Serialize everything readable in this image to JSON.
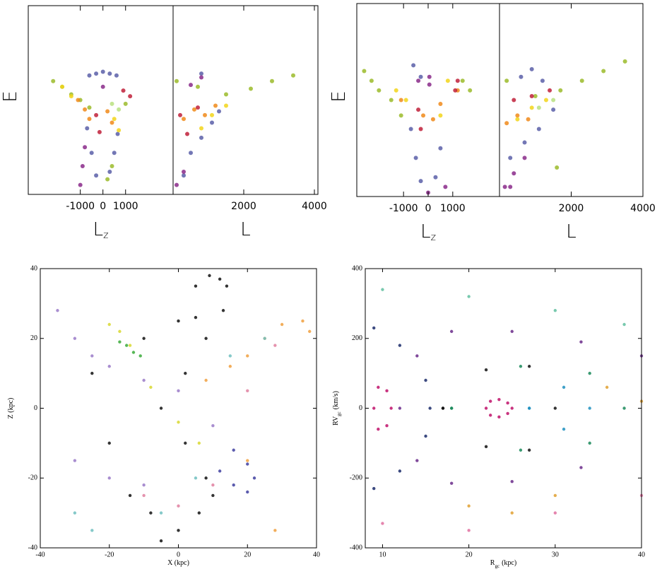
{
  "chart_data": [
    {
      "type": "scatter",
      "xlabel": "L",
      "xlabel_sub": "z",
      "ylabel": "E",
      "xlim": [
        -3300,
        3100
      ],
      "xticks": [
        -1000,
        0,
        1000
      ],
      "ylim": [
        0,
        1
      ],
      "series": [
        {
          "color": "#5b5fa8",
          "x": [
            -600,
            -300,
            0,
            300,
            600,
            -700,
            -500,
            -300,
            300,
            500,
            650
          ],
          "y": [
            0.63,
            0.64,
            0.65,
            0.64,
            0.63,
            0.35,
            0.22,
            0.1,
            0.12,
            0.22,
            0.32
          ]
        },
        {
          "color": "#9bbb2a",
          "x": [
            -2200,
            -1800,
            -1400,
            -1000,
            -600,
            200,
            400,
            1000
          ],
          "y": [
            0.6,
            0.57,
            0.53,
            0.5,
            0.46,
            0.08,
            0.15,
            0.48
          ]
        },
        {
          "color": "#f08a1a",
          "x": [
            -1100,
            -800,
            -600,
            200,
            400
          ],
          "y": [
            0.5,
            0.45,
            0.4,
            0.44,
            0.38
          ]
        },
        {
          "color": "#f2d51a",
          "x": [
            -1800,
            -1400,
            500,
            700
          ],
          "y": [
            0.57,
            0.52,
            0.4,
            0.34
          ]
        },
        {
          "color": "#c0203a",
          "x": [
            -300,
            -150,
            900,
            1200
          ],
          "y": [
            0.42,
            0.33,
            0.55,
            0.52
          ]
        },
        {
          "color": "#8a2a8a",
          "x": [
            -1000,
            -900,
            -800,
            0
          ],
          "y": [
            0.05,
            0.15,
            0.25,
            0.57
          ]
        },
        {
          "color": "#b8e080",
          "x": [
            400,
            700
          ],
          "y": [
            0.48,
            0.45
          ]
        }
      ]
    },
    {
      "type": "scatter",
      "xlabel": "L",
      "xlim": [
        0,
        4100
      ],
      "xticks": [
        2000,
        4000
      ],
      "ylim": [
        0,
        1
      ],
      "series": [
        {
          "color": "#5b5fa8",
          "x": [
            300,
            500,
            800,
            1100,
            1300,
            800
          ],
          "y": [
            0.1,
            0.22,
            0.3,
            0.38,
            0.44,
            0.64
          ]
        },
        {
          "color": "#9bbb2a",
          "x": [
            100,
            700,
            1500,
            2200,
            2800,
            3400
          ],
          "y": [
            0.6,
            0.57,
            0.53,
            0.56,
            0.6,
            0.63
          ]
        },
        {
          "color": "#f08a1a",
          "x": [
            300,
            600,
            900,
            1200
          ],
          "y": [
            0.4,
            0.45,
            0.42,
            0.47
          ]
        },
        {
          "color": "#f2d51a",
          "x": [
            800,
            1100,
            1500
          ],
          "y": [
            0.35,
            0.42,
            0.47
          ]
        },
        {
          "color": "#c0203a",
          "x": [
            200,
            400,
            700
          ],
          "y": [
            0.42,
            0.32,
            0.46
          ]
        },
        {
          "color": "#8a2a8a",
          "x": [
            100,
            300,
            500,
            800
          ],
          "y": [
            0.05,
            0.12,
            0.58,
            0.62
          ]
        }
      ]
    },
    {
      "type": "scatter",
      "xlabel": "L",
      "xlabel_sub": "z",
      "ylabel": "E",
      "xlim": [
        -2900,
        2900
      ],
      "xticks": [
        -1000,
        0,
        1000
      ],
      "ylim": [
        0,
        1
      ],
      "series": [
        {
          "color": "#9bbb2a",
          "x": [
            -2600,
            -2300,
            -2000,
            -1500,
            -1100,
            1400,
            1700
          ],
          "y": [
            0.65,
            0.6,
            0.55,
            0.5,
            0.42,
            0.6,
            0.55
          ]
        },
        {
          "color": "#5b5fa8",
          "x": [
            -700,
            -500,
            -300,
            300,
            500,
            -600,
            -300
          ],
          "y": [
            0.35,
            0.2,
            0.08,
            0.1,
            0.25,
            0.68,
            0.62
          ]
        },
        {
          "color": "#f08a1a",
          "x": [
            -1100,
            -200,
            200,
            500,
            1200
          ],
          "y": [
            0.5,
            0.42,
            0.4,
            0.48,
            0.55
          ]
        },
        {
          "color": "#f2d51a",
          "x": [
            -1300,
            -900,
            500,
            800
          ],
          "y": [
            0.55,
            0.5,
            0.42,
            0.6
          ]
        },
        {
          "color": "#c0203a",
          "x": [
            -400,
            -300,
            1100,
            1200
          ],
          "y": [
            0.45,
            0.35,
            0.55,
            0.6
          ]
        },
        {
          "color": "#8a2a8a",
          "x": [
            -400,
            50,
            50,
            700,
            0
          ],
          "y": [
            0.6,
            0.58,
            0.62,
            0.05,
            0.02
          ]
        }
      ]
    },
    {
      "type": "scatter",
      "xlabel": "L",
      "xlim": [
        0,
        4000
      ],
      "xticks": [
        2000,
        4000
      ],
      "ylim": [
        0,
        1
      ],
      "series": [
        {
          "color": "#5b5fa8",
          "x": [
            300,
            700,
            1100,
            1500,
            600,
            900,
            1200
          ],
          "y": [
            0.2,
            0.28,
            0.35,
            0.45,
            0.62,
            0.66,
            0.6
          ]
        },
        {
          "color": "#9bbb2a",
          "x": [
            200,
            1000,
            1700,
            2300,
            2900,
            3500,
            1600
          ],
          "y": [
            0.6,
            0.52,
            0.55,
            0.6,
            0.65,
            0.7,
            0.15
          ]
        },
        {
          "color": "#f08a1a",
          "x": [
            200,
            500,
            800
          ],
          "y": [
            0.38,
            0.42,
            0.4
          ]
        },
        {
          "color": "#f2d51a",
          "x": [
            500,
            900,
            1300
          ],
          "y": [
            0.4,
            0.46,
            0.5
          ]
        },
        {
          "color": "#c0203a",
          "x": [
            400,
            900,
            1400
          ],
          "y": [
            0.5,
            0.52,
            0.55
          ]
        },
        {
          "color": "#8a2a8a",
          "x": [
            150,
            400,
            700,
            300
          ],
          "y": [
            0.05,
            0.12,
            0.2,
            0.05
          ]
        },
        {
          "color": "#b8e080",
          "x": [
            1100,
            1500
          ],
          "y": [
            0.46,
            0.5
          ]
        }
      ]
    },
    {
      "type": "scatter",
      "xlabel": "X (kpc)",
      "ylabel": "Z (kpc)",
      "xlim": [
        -40,
        40
      ],
      "xticks": [
        -40,
        -20,
        0,
        20,
        40
      ],
      "ylim": [
        -40,
        40
      ],
      "yticks": [
        -40,
        -20,
        0,
        20,
        40
      ],
      "series": [
        {
          "color": "#111111",
          "x": [
            5,
            9,
            12,
            14,
            13,
            8,
            2,
            -5,
            2,
            8,
            10,
            6,
            0,
            -5,
            -8,
            -14,
            -20,
            -25,
            -10,
            0,
            5
          ],
          "y": [
            35,
            38,
            37,
            35,
            28,
            20,
            10,
            0,
            -10,
            -20,
            -25,
            -30,
            -35,
            -38,
            -30,
            -25,
            -10,
            10,
            20,
            25,
            26
          ]
        },
        {
          "color": "#3aaa3a",
          "x": [
            -17,
            -15,
            -13,
            -11
          ],
          "y": [
            19,
            18,
            16,
            15
          ]
        },
        {
          "color": "#9a7ac8",
          "x": [
            -35,
            -30,
            -25,
            -20,
            -10,
            0,
            10,
            -30,
            -20,
            -10
          ],
          "y": [
            28,
            20,
            15,
            12,
            8,
            5,
            -5,
            -15,
            -20,
            -22
          ]
        },
        {
          "color": "#f0a040",
          "x": [
            8,
            15,
            20,
            25,
            30,
            36,
            38,
            20,
            28
          ],
          "y": [
            8,
            12,
            15,
            20,
            24,
            25,
            22,
            -15,
            -35
          ]
        },
        {
          "color": "#4040a0",
          "x": [
            12,
            16,
            20,
            22,
            20,
            16
          ],
          "y": [
            -18,
            -22,
            -24,
            -20,
            -16,
            -12
          ]
        },
        {
          "color": "#d8d830",
          "x": [
            -20,
            -17,
            -14,
            -8,
            0,
            6
          ],
          "y": [
            24,
            22,
            18,
            6,
            -4,
            -10
          ]
        },
        {
          "color": "#70c0c0",
          "x": [
            -30,
            -25,
            -5,
            5,
            15,
            25
          ],
          "y": [
            -30,
            -35,
            -30,
            -20,
            15,
            20
          ]
        },
        {
          "color": "#e080a0",
          "x": [
            -10,
            0,
            10,
            20,
            28
          ],
          "y": [
            -25,
            -28,
            -22,
            5,
            18
          ]
        }
      ]
    },
    {
      "type": "scatter",
      "xlabel": "R",
      "xlabel_sub": "gc",
      "xlabel_unit": "(kpc)",
      "ylabel": "RV",
      "ylabel_sub": "gc",
      "ylabel_unit": "(km/s)",
      "xlim": [
        8,
        40
      ],
      "xticks": [
        10,
        20,
        30,
        40
      ],
      "ylim": [
        -400,
        400
      ],
      "yticks": [
        -400,
        -200,
        0,
        200,
        400
      ],
      "series": [
        {
          "color": "#c0106a",
          "x": [
            22,
            22.5,
            23.5,
            24.5,
            25,
            24.5,
            23.5,
            22.5,
            9,
            9.5,
            10.5,
            11,
            10.5,
            9.5
          ],
          "y": [
            0,
            20,
            25,
            15,
            0,
            -15,
            -25,
            -20,
            0,
            60,
            50,
            0,
            -50,
            -60
          ]
        },
        {
          "color": "#6a2a8a",
          "x": [
            12,
            14,
            18,
            25,
            33,
            40,
            33,
            25,
            18,
            14
          ],
          "y": [
            0,
            150,
            220,
            220,
            190,
            150,
            -170,
            -210,
            -215,
            -150
          ]
        },
        {
          "color": "#1a2a6a",
          "x": [
            9,
            12,
            15,
            15.5,
            15,
            12,
            9
          ],
          "y": [
            230,
            180,
            80,
            0,
            -80,
            -180,
            -230
          ]
        },
        {
          "color": "#111111",
          "x": [
            17,
            22,
            27,
            30,
            27,
            22,
            17
          ],
          "y": [
            0,
            110,
            120,
            0,
            -120,
            -110,
            0
          ]
        },
        {
          "color": "#1a8a5a",
          "x": [
            18,
            26,
            34,
            38,
            34,
            26,
            18
          ],
          "y": [
            0,
            120,
            100,
            0,
            -100,
            -120,
            0
          ]
        },
        {
          "color": "#2090c0",
          "x": [
            27,
            31,
            34,
            31,
            27
          ],
          "y": [
            0,
            60,
            0,
            -60,
            0
          ]
        },
        {
          "color": "#e0a030",
          "x": [
            20,
            25,
            30,
            36,
            40
          ],
          "y": [
            -280,
            -300,
            -250,
            60,
            20
          ]
        },
        {
          "color": "#60c0a0",
          "x": [
            10,
            20,
            30,
            38
          ],
          "y": [
            340,
            320,
            280,
            240
          ]
        },
        {
          "color": "#e070a0",
          "x": [
            10,
            20,
            30,
            40
          ],
          "y": [
            -330,
            -350,
            -300,
            -250
          ]
        }
      ]
    }
  ]
}
